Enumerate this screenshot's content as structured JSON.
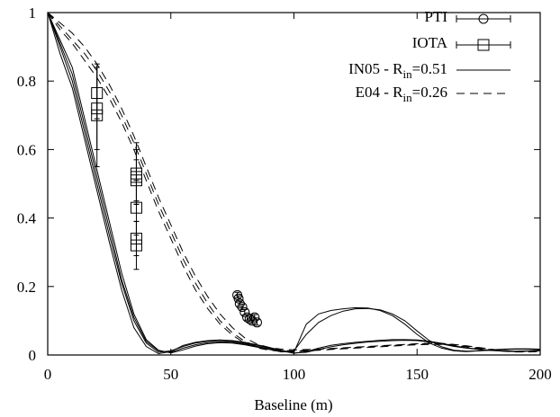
{
  "chart_data": {
    "type": "line",
    "xlabel": "Baseline (m)",
    "ylabel": "",
    "xlim": [
      0,
      200
    ],
    "ylim": [
      0,
      1
    ],
    "xticks": [
      0,
      50,
      100,
      150,
      200
    ],
    "yticks": [
      0,
      0.2,
      0.4,
      0.6,
      0.8,
      1
    ],
    "grid": false,
    "legend_position": "top-right",
    "legend": {
      "pti": "PTI",
      "iota": "IOTA",
      "in05_prefix": "IN05 - R",
      "in05_sub": "in",
      "in05_suffix": "=0.51",
      "e04_prefix": "E04 - R",
      "e04_sub": "in",
      "e04_suffix": "=0.26"
    },
    "series": [
      {
        "name": "PTI",
        "marker": "circle",
        "x": [
          77,
          77.5,
          78,
          79,
          80,
          81,
          82,
          83,
          84,
          85
        ],
        "y": [
          0.175,
          0.165,
          0.15,
          0.14,
          0.125,
          0.11,
          0.105,
          0.1,
          0.11,
          0.095
        ],
        "yerr": [
          0.008,
          0.008,
          0.008,
          0.008,
          0.008,
          0.008,
          0.008,
          0.008,
          0.008,
          0.008
        ]
      },
      {
        "name": "IOTA",
        "marker": "square",
        "x": [
          20,
          20,
          20,
          36,
          36,
          36,
          36,
          36,
          36
        ],
        "y": [
          0.765,
          0.72,
          0.7,
          0.53,
          0.51,
          0.43,
          0.34,
          0.32,
          0.52
        ],
        "yerr": [
          0.075,
          0.12,
          0.15,
          0.09,
          0.06,
          0.08,
          0.05,
          0.07,
          0.08
        ]
      },
      {
        "name": "IN05 - Rin=0.51",
        "style": "solid",
        "bundle": [
          {
            "x": [
              0,
              5,
              10,
              15,
              20,
              25,
              30,
              35,
              40,
              45,
              50,
              55,
              60,
              65,
              70,
              75,
              80,
              85,
              90,
              95,
              100,
              105,
              110,
              115,
              120,
              125,
              130,
              135,
              140,
              145,
              150,
              155,
              160,
              165,
              170,
              175,
              180,
              185,
              190,
              195,
              200
            ],
            "y": [
              1,
              0.9,
              0.8,
              0.65,
              0.5,
              0.35,
              0.21,
              0.1,
              0.035,
              0.008,
              0.012,
              0.025,
              0.035,
              0.04,
              0.042,
              0.04,
              0.035,
              0.028,
              0.02,
              0.012,
              0.005,
              0.01,
              0.02,
              0.028,
              0.033,
              0.037,
              0.04,
              0.043,
              0.045,
              0.045,
              0.044,
              0.04,
              0.034,
              0.027,
              0.021,
              0.017,
              0.014,
              0.012,
              0.011,
              0.012,
              0.014
            ]
          },
          {
            "x": [
              0,
              5,
              10,
              15,
              20,
              25,
              30,
              35,
              40,
              45,
              50,
              55,
              60,
              65,
              70,
              75,
              80,
              85,
              90,
              95,
              100,
              105,
              110,
              115,
              120,
              125,
              130,
              135,
              140,
              145,
              150,
              155,
              160,
              165,
              170,
              175,
              180,
              185,
              190,
              195,
              200
            ],
            "y": [
              1,
              0.91,
              0.82,
              0.67,
              0.52,
              0.37,
              0.22,
              0.11,
              0.04,
              0.012,
              0.008,
              0.02,
              0.03,
              0.036,
              0.038,
              0.037,
              0.032,
              0.025,
              0.017,
              0.01,
              0.008,
              0.09,
              0.12,
              0.13,
              0.135,
              0.138,
              0.137,
              0.13,
              0.115,
              0.09,
              0.06,
              0.035,
              0.02,
              0.012,
              0.01,
              0.012,
              0.015,
              0.017,
              0.018,
              0.018,
              0.017
            ]
          },
          {
            "x": [
              0,
              5,
              10,
              15,
              20,
              25,
              30,
              35,
              40,
              45,
              50,
              55,
              60,
              65,
              70,
              75,
              80,
              85,
              90,
              95,
              100,
              105,
              110,
              115,
              120,
              125,
              130,
              135,
              140,
              145,
              150,
              155,
              160,
              165,
              170,
              175,
              180,
              185,
              190,
              195,
              200
            ],
            "y": [
              1,
              0.88,
              0.78,
              0.63,
              0.48,
              0.33,
              0.19,
              0.08,
              0.025,
              0.004,
              0.01,
              0.028,
              0.037,
              0.042,
              0.044,
              0.042,
              0.037,
              0.03,
              0.022,
              0.014,
              0.006,
              0.008,
              0.016,
              0.024,
              0.03,
              0.034,
              0.038,
              0.04,
              0.042,
              0.043,
              0.042,
              0.038,
              0.032,
              0.025,
              0.02,
              0.016,
              0.013,
              0.011,
              0.01,
              0.011,
              0.013
            ]
          },
          {
            "x": [
              0,
              5,
              10,
              15,
              20,
              25,
              30,
              35,
              40,
              45,
              50,
              55,
              60,
              65,
              70,
              75,
              80,
              85,
              90,
              95,
              100,
              105,
              110,
              115,
              120,
              125,
              130,
              135,
              140,
              145,
              150,
              155,
              160,
              165,
              170,
              175,
              180,
              185,
              190,
              195,
              200
            ],
            "y": [
              1,
              0.92,
              0.84,
              0.69,
              0.54,
              0.39,
              0.24,
              0.12,
              0.045,
              0.014,
              0.006,
              0.015,
              0.026,
              0.033,
              0.036,
              0.035,
              0.03,
              0.023,
              0.016,
              0.009,
              0.012,
              0.06,
              0.095,
              0.115,
              0.128,
              0.135,
              0.136,
              0.132,
              0.12,
              0.1,
              0.07,
              0.042,
              0.024,
              0.014,
              0.011,
              0.012,
              0.014,
              0.016,
              0.017,
              0.017,
              0.016
            ]
          }
        ]
      },
      {
        "name": "E04 - Rin=0.26",
        "style": "dashed",
        "bundle": [
          {
            "x": [
              0,
              5,
              10,
              15,
              20,
              25,
              30,
              35,
              40,
              45,
              50,
              55,
              60,
              65,
              70,
              75,
              80,
              85,
              90,
              95,
              100,
              105,
              110,
              115,
              120,
              125,
              130,
              135,
              140,
              145,
              150,
              155,
              160,
              165,
              170,
              175,
              180,
              185,
              190,
              195,
              200
            ],
            "y": [
              1,
              0.96,
              0.92,
              0.88,
              0.83,
              0.77,
              0.7,
              0.62,
              0.53,
              0.44,
              0.36,
              0.28,
              0.21,
              0.15,
              0.1,
              0.065,
              0.04,
              0.025,
              0.017,
              0.013,
              0.012,
              0.014,
              0.016,
              0.018,
              0.02,
              0.022,
              0.024,
              0.026,
              0.028,
              0.03,
              0.032,
              0.033,
              0.033,
              0.03,
              0.026,
              0.021,
              0.016,
              0.012,
              0.01,
              0.01,
              0.011
            ]
          },
          {
            "x": [
              0,
              5,
              10,
              15,
              20,
              25,
              30,
              35,
              40,
              45,
              50,
              55,
              60,
              65,
              70,
              75,
              80,
              85,
              90,
              95,
              100,
              105,
              110,
              115,
              120,
              125,
              130,
              135,
              140,
              145,
              150,
              155,
              160,
              165,
              170,
              175,
              180,
              185,
              190,
              195,
              200
            ],
            "y": [
              1,
              0.97,
              0.94,
              0.9,
              0.85,
              0.79,
              0.72,
              0.64,
              0.55,
              0.46,
              0.38,
              0.3,
              0.23,
              0.17,
              0.12,
              0.08,
              0.05,
              0.032,
              0.022,
              0.017,
              0.015,
              0.016,
              0.017,
              0.019,
              0.021,
              0.023,
              0.025,
              0.027,
              0.029,
              0.031,
              0.033,
              0.034,
              0.034,
              0.031,
              0.027,
              0.022,
              0.017,
              0.013,
              0.011,
              0.011,
              0.012
            ]
          },
          {
            "x": [
              0,
              5,
              10,
              15,
              20,
              25,
              30,
              35,
              40,
              45,
              50,
              55,
              60,
              65,
              70,
              75,
              80,
              85,
              90,
              95,
              100,
              105,
              110,
              115,
              120,
              125,
              130,
              135,
              140,
              145,
              150,
              155,
              160,
              165,
              170,
              175,
              180,
              185,
              190,
              195,
              200
            ],
            "y": [
              1,
              0.95,
              0.91,
              0.86,
              0.81,
              0.75,
              0.68,
              0.6,
              0.51,
              0.42,
              0.34,
              0.26,
              0.19,
              0.135,
              0.09,
              0.058,
              0.035,
              0.021,
              0.014,
              0.011,
              0.01,
              0.012,
              0.014,
              0.016,
              0.018,
              0.02,
              0.022,
              0.024,
              0.026,
              0.028,
              0.03,
              0.031,
              0.031,
              0.028,
              0.024,
              0.019,
              0.015,
              0.011,
              0.009,
              0.009,
              0.01
            ]
          }
        ]
      }
    ]
  }
}
